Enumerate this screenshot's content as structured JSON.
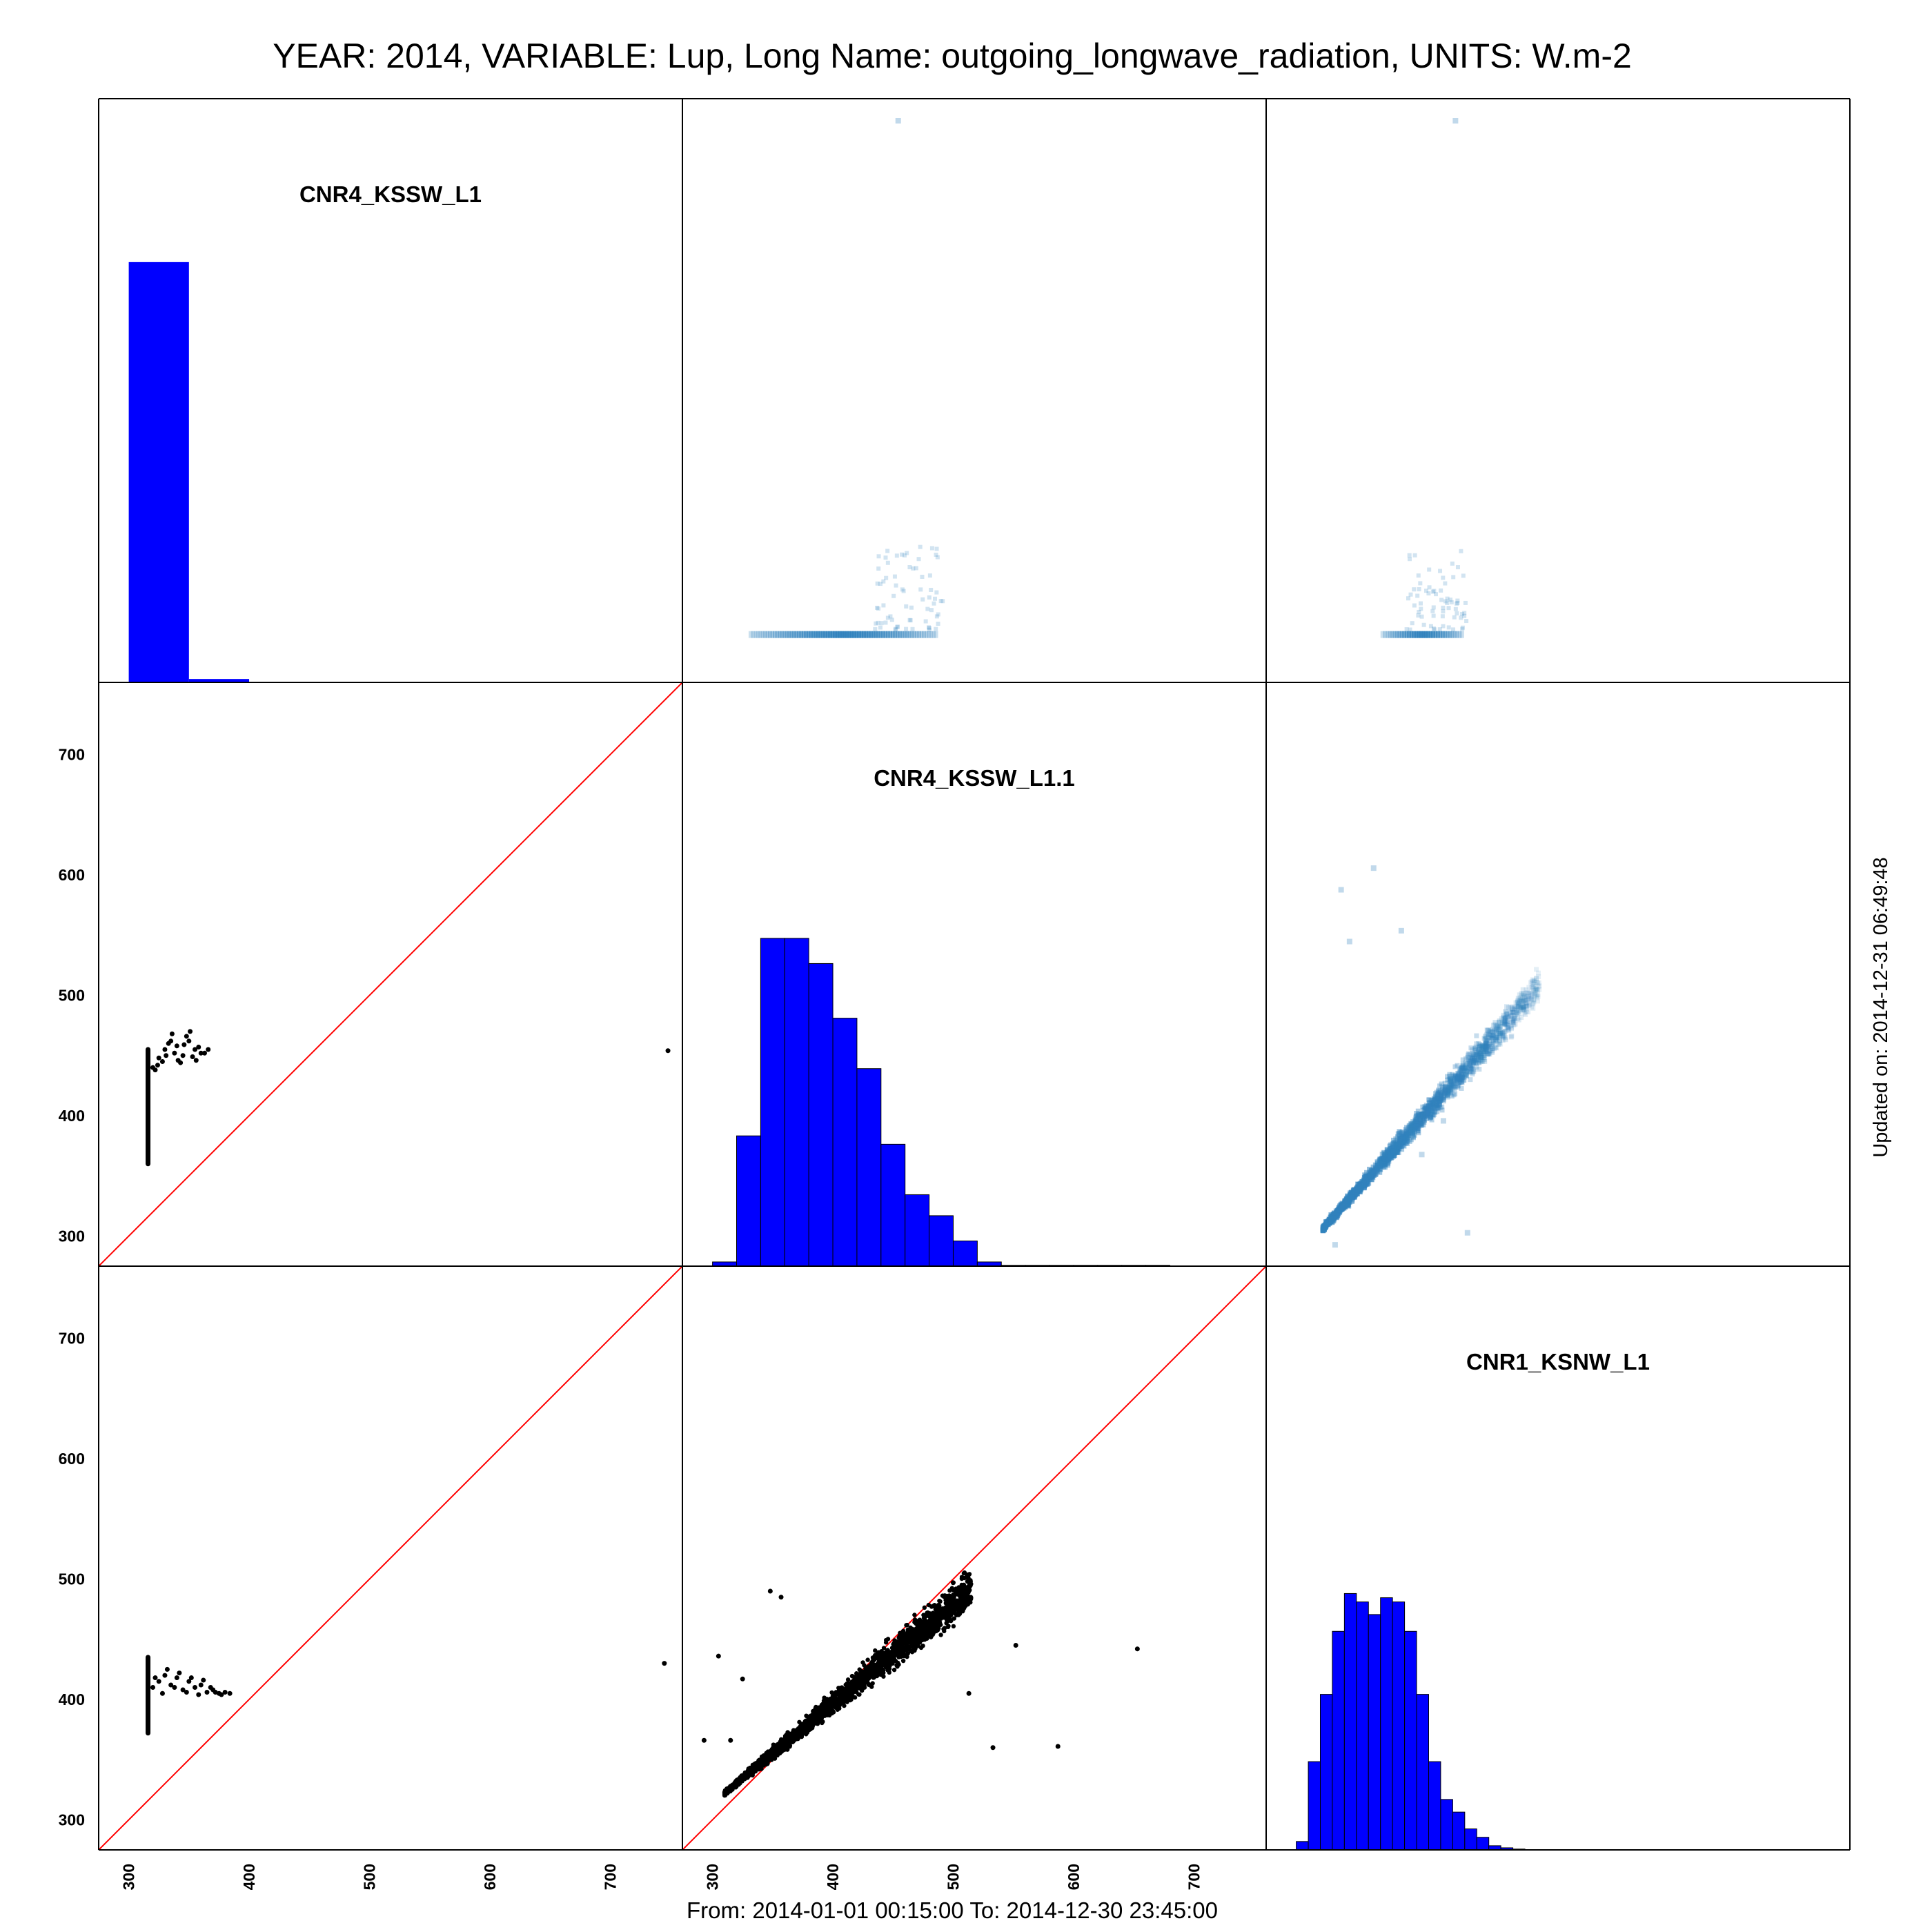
{
  "title": "YEAR: 2014, VARIABLE: Lup, Long Name: outgoing_longwave_radiation, UNITS: W.m-2",
  "footer": "From: 2014-01-01 00:15:00 To: 2014-12-30 23:45:00",
  "updated": "Updated on: 2014-12-31 06:49:48",
  "colors": {
    "hist_fill": "#0000ff",
    "identity_line": "#ff0000",
    "points": "#000000",
    "density": "#3182bd"
  },
  "variables": [
    "CNR4_KSSW_L1",
    "CNR4_KSSW_L1.1",
    "CNR1_KSNW_L1"
  ],
  "chart_data": [
    {
      "type": "bar",
      "title": "CNR4_KSSW_L1",
      "bin_width": 50,
      "x": [
        300,
        350
      ],
      "values": [
        1.0,
        0.008
      ]
    },
    {
      "type": "bar",
      "title": "CNR4_KSSW_L1.1",
      "bin_width": 20,
      "x": [
        300,
        320,
        340,
        360,
        380,
        400,
        420,
        440,
        460,
        480,
        500,
        520,
        540,
        560,
        580,
        600,
        620,
        640,
        660
      ],
      "values": [
        0.01,
        0.31,
        0.78,
        0.78,
        0.72,
        0.59,
        0.47,
        0.29,
        0.17,
        0.12,
        0.06,
        0.01,
        0.002,
        0.002,
        0.002,
        0.002,
        0.002,
        0.002,
        0.002
      ]
    },
    {
      "type": "bar",
      "title": "CNR1_KSNW_L1",
      "bin_width": 10,
      "x": [
        300,
        310,
        320,
        330,
        340,
        350,
        360,
        370,
        380,
        390,
        400,
        410,
        420,
        430,
        440,
        450,
        460,
        470,
        480
      ],
      "values": [
        0.02,
        0.21,
        0.37,
        0.52,
        0.61,
        0.59,
        0.56,
        0.6,
        0.59,
        0.52,
        0.37,
        0.21,
        0.12,
        0.09,
        0.05,
        0.03,
        0.01,
        0.005,
        0.002
      ]
    },
    {
      "type": "scatter",
      "panel": "row2-col1",
      "x_variable": "CNR4_KSSW_L1",
      "y_variable": "CNR4_KSSW_L1.1",
      "xlim": [
        275,
        760
      ],
      "ylim": [
        275,
        760
      ],
      "xticks": [
        300,
        400,
        500,
        600,
        700
      ],
      "yticks": [
        300,
        400,
        500,
        600,
        700
      ],
      "identity_line": true,
      "vertical_band": {
        "x": 316,
        "y_range": [
          360,
          455
        ]
      },
      "points": [
        [
          320,
          440
        ],
        [
          325,
          448
        ],
        [
          330,
          455
        ],
        [
          335,
          462
        ],
        [
          340,
          458
        ],
        [
          345,
          450
        ],
        [
          350,
          462
        ],
        [
          355,
          455
        ],
        [
          360,
          452
        ],
        [
          322,
          438
        ],
        [
          328,
          445
        ],
        [
          333,
          460
        ],
        [
          338,
          452
        ],
        [
          343,
          444
        ],
        [
          348,
          466
        ],
        [
          353,
          449
        ],
        [
          358,
          457
        ],
        [
          363,
          452
        ],
        [
          324,
          442
        ],
        [
          331,
          450
        ],
        [
          336,
          468
        ],
        [
          341,
          446
        ],
        [
          346,
          459
        ],
        [
          351,
          470
        ],
        [
          356,
          446
        ],
        [
          366,
          455
        ],
        [
          748,
          454
        ]
      ]
    },
    {
      "type": "scatter",
      "panel": "row3-col1",
      "x_variable": "CNR4_KSSW_L1",
      "y_variable": "CNR1_KSNW_L1",
      "xlim": [
        275,
        760
      ],
      "ylim": [
        275,
        760
      ],
      "xticks": [
        300,
        400,
        500,
        600,
        700
      ],
      "yticks": [
        300,
        400,
        500,
        600,
        700
      ],
      "identity_line": true,
      "vertical_band": {
        "x": 316,
        "y_range": [
          372,
          435
        ]
      },
      "points": [
        [
          320,
          410
        ],
        [
          325,
          415
        ],
        [
          330,
          420
        ],
        [
          335,
          412
        ],
        [
          340,
          418
        ],
        [
          345,
          408
        ],
        [
          350,
          415
        ],
        [
          355,
          410
        ],
        [
          360,
          412
        ],
        [
          365,
          406
        ],
        [
          370,
          408
        ],
        [
          375,
          405
        ],
        [
          380,
          406
        ],
        [
          322,
          418
        ],
        [
          328,
          405
        ],
        [
          332,
          425
        ],
        [
          338,
          410
        ],
        [
          342,
          422
        ],
        [
          348,
          406
        ],
        [
          352,
          418
        ],
        [
          358,
          404
        ],
        [
          362,
          416
        ],
        [
          368,
          410
        ],
        [
          372,
          406
        ],
        [
          377,
          404
        ],
        [
          384,
          405
        ],
        [
          745,
          430
        ]
      ]
    },
    {
      "type": "scatter",
      "panel": "row3-col2",
      "x_variable": "CNR4_KSSW_L1.1",
      "y_variable": "CNR1_KSNW_L1",
      "xlim": [
        275,
        760
      ],
      "ylim": [
        275,
        760
      ],
      "xticks": [
        300,
        400,
        500,
        600,
        700
      ],
      "identity_line": true,
      "cloud": {
        "x_range": [
          310,
          515
        ],
        "slope": 0.83,
        "y_at_310": 322
      },
      "points": [
        [
          293,
          366
        ],
        [
          305,
          436
        ],
        [
          315,
          366
        ],
        [
          325,
          417
        ],
        [
          348,
          490
        ],
        [
          357,
          485
        ],
        [
          500,
          497
        ],
        [
          507,
          478
        ],
        [
          552,
          445
        ],
        [
          587,
          361
        ],
        [
          533,
          360
        ],
        [
          513,
          405
        ],
        [
          653,
          442
        ]
      ]
    },
    {
      "type": "heatmap",
      "panel": "row1-col2",
      "x_variable": "CNR4_KSSW_L1.1",
      "y_variable": "CNR4_KSSW_L1",
      "band": {
        "x_range": [
          330,
          485
        ],
        "y": 316
      },
      "outlier": {
        "x": 452,
        "y": 748
      }
    },
    {
      "type": "heatmap",
      "panel": "row1-col3",
      "x_variable": "CNR1_KSNW_L1",
      "y_variable": "CNR4_KSSW_L1",
      "band": {
        "x_range": [
          370,
          437
        ],
        "y": 316
      },
      "outlier": {
        "x": 430,
        "y": 748
      }
    },
    {
      "type": "heatmap",
      "panel": "row2-col3",
      "x_variable": "CNR1_KSNW_L1",
      "y_variable": "CNR4_KSSW_L1.1",
      "cloud": {
        "x_range": [
          320,
          500
        ],
        "y_range": [
          310,
          520
        ]
      },
      "outliers": [
        [
          335,
          590
        ],
        [
          342,
          547
        ],
        [
          330,
          295
        ],
        [
          362,
          608
        ],
        [
          385,
          556
        ],
        [
          440,
          305
        ],
        [
          420,
          398
        ],
        [
          402,
          370
        ]
      ]
    }
  ]
}
